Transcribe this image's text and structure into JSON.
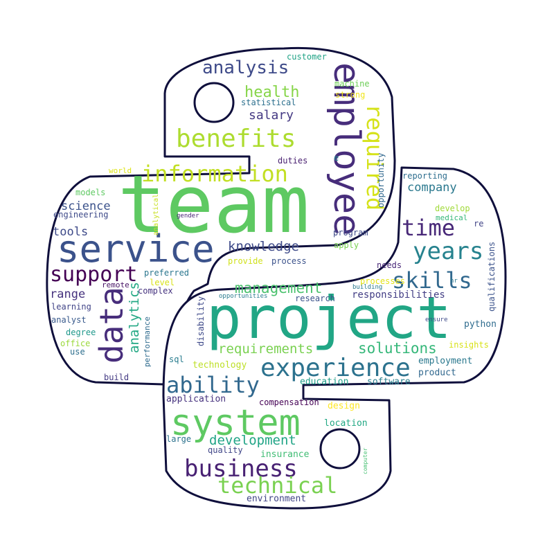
{
  "colors": {
    "outline": "#0f0f3c",
    "fill": "#ffffff",
    "palette": [
      "#440154",
      "#472d7b",
      "#3b528b",
      "#2c728e",
      "#21918c",
      "#28ae80",
      "#5ec962",
      "#addc30",
      "#fde725"
    ]
  },
  "words": [
    {
      "text": "team",
      "color": "#5ec962"
    },
    {
      "text": "project",
      "color": "#21a685"
    },
    {
      "text": "service",
      "color": "#3b528b"
    },
    {
      "text": "employee",
      "color": "#472d7b"
    },
    {
      "text": "system",
      "color": "#5ec962"
    },
    {
      "text": "data",
      "color": "#472d7b"
    },
    {
      "text": "experience",
      "color": "#2c728e"
    },
    {
      "text": "benefits",
      "color": "#addc30"
    },
    {
      "text": "information",
      "color": "#c2df23"
    },
    {
      "text": "business",
      "color": "#482173"
    },
    {
      "text": "required",
      "color": "#d5e21a"
    },
    {
      "text": "technical",
      "color": "#7ad151"
    },
    {
      "text": "support",
      "color": "#440154"
    },
    {
      "text": "skills",
      "color": "#31688e"
    },
    {
      "text": "years",
      "color": "#26828e"
    },
    {
      "text": "time",
      "color": "#482878"
    },
    {
      "text": "ability",
      "color": "#31688e"
    },
    {
      "text": "analysis",
      "color": "#3e4a89"
    },
    {
      "text": "development",
      "color": "#20a486"
    },
    {
      "text": "solutions",
      "color": "#35b779"
    },
    {
      "text": "management",
      "color": "#4ac16d"
    },
    {
      "text": "health",
      "color": "#86d549"
    },
    {
      "text": "knowledge",
      "color": "#3e4a89"
    },
    {
      "text": "requirements",
      "color": "#7ad151"
    },
    {
      "text": "analytics",
      "color": "#22a884"
    },
    {
      "text": "salary",
      "color": "#443983"
    },
    {
      "text": "company",
      "color": "#2a788e"
    },
    {
      "text": "science",
      "color": "#3b528b"
    },
    {
      "text": "tools",
      "color": "#3e4a89"
    },
    {
      "text": "range",
      "color": "#46327e"
    },
    {
      "text": "responsibilities",
      "color": "#433e85"
    },
    {
      "text": "education",
      "color": "#1f9e89"
    },
    {
      "text": "software",
      "color": "#277f8e"
    },
    {
      "text": "employment",
      "color": "#2a788e"
    },
    {
      "text": "product",
      "color": "#31688e"
    },
    {
      "text": "application",
      "color": "#46327e"
    },
    {
      "text": "environment",
      "color": "#414487"
    },
    {
      "text": "insurance",
      "color": "#3fbc73"
    },
    {
      "text": "location",
      "color": "#22a884"
    },
    {
      "text": "compensation",
      "color": "#440154"
    },
    {
      "text": "design",
      "color": "#fde725"
    },
    {
      "text": "quality",
      "color": "#404688"
    },
    {
      "text": "large",
      "color": "#2c728e"
    },
    {
      "text": "technology",
      "color": "#bddf26"
    },
    {
      "text": "sql",
      "color": "#287c8e"
    },
    {
      "text": "research",
      "color": "#3b528b"
    },
    {
      "text": "processes",
      "color": "#e5e419"
    },
    {
      "text": "insights",
      "color": "#d8e219"
    },
    {
      "text": "python",
      "color": "#2f6c8e"
    },
    {
      "text": "ensure",
      "color": "#3e4a89"
    },
    {
      "text": "qualifications",
      "color": "#3b528b"
    },
    {
      "text": "opportunity",
      "color": "#31688e"
    },
    {
      "text": "reporting",
      "color": "#2e6e8e"
    },
    {
      "text": "develop",
      "color": "#a0da39"
    },
    {
      "text": "medical",
      "color": "#35b779"
    },
    {
      "text": "re",
      "color": "#414487"
    },
    {
      "text": "hr",
      "color": "#2a788e"
    },
    {
      "text": "building",
      "color": "#2a788e"
    },
    {
      "text": "needs",
      "color": "#482878"
    },
    {
      "text": "process",
      "color": "#3b528b"
    },
    {
      "text": "provide",
      "color": "#d0e11c"
    },
    {
      "text": "apply",
      "color": "#7ad151"
    },
    {
      "text": "program",
      "color": "#3e4a89"
    },
    {
      "text": "duties",
      "color": "#481f70"
    },
    {
      "text": "e",
      "color": "#25848e"
    },
    {
      "text": "customer",
      "color": "#20a386"
    },
    {
      "text": "machine",
      "color": "#6ece58"
    },
    {
      "text": "strong",
      "color": "#f1e51d"
    },
    {
      "text": "statistical",
      "color": "#2d708e"
    },
    {
      "text": "world",
      "color": "#dde318"
    },
    {
      "text": "models",
      "color": "#5ec962"
    },
    {
      "text": "engineering",
      "color": "#3e4a89"
    },
    {
      "text": "analytical",
      "color": "#c8e020"
    },
    {
      "text": "gender",
      "color": "#482475"
    },
    {
      "text": "preferred",
      "color": "#2a768e"
    },
    {
      "text": "level",
      "color": "#d8e219"
    },
    {
      "text": "remote",
      "color": "#471365"
    },
    {
      "text": "complex",
      "color": "#46337f"
    },
    {
      "text": "learning",
      "color": "#414487"
    },
    {
      "text": "analyst",
      "color": "#38598c"
    },
    {
      "text": "degree",
      "color": "#1f988b"
    },
    {
      "text": "office",
      "color": "#9bd93c"
    },
    {
      "text": "use",
      "color": "#2e6f8e"
    },
    {
      "text": "build",
      "color": "#443a83"
    },
    {
      "text": "performance",
      "color": "#2f6b8e"
    },
    {
      "text": "disability",
      "color": "#3e4989"
    },
    {
      "text": "opportunities",
      "color": "#297b8e"
    },
    {
      "text": "computer",
      "color": "#44bf70"
    }
  ]
}
